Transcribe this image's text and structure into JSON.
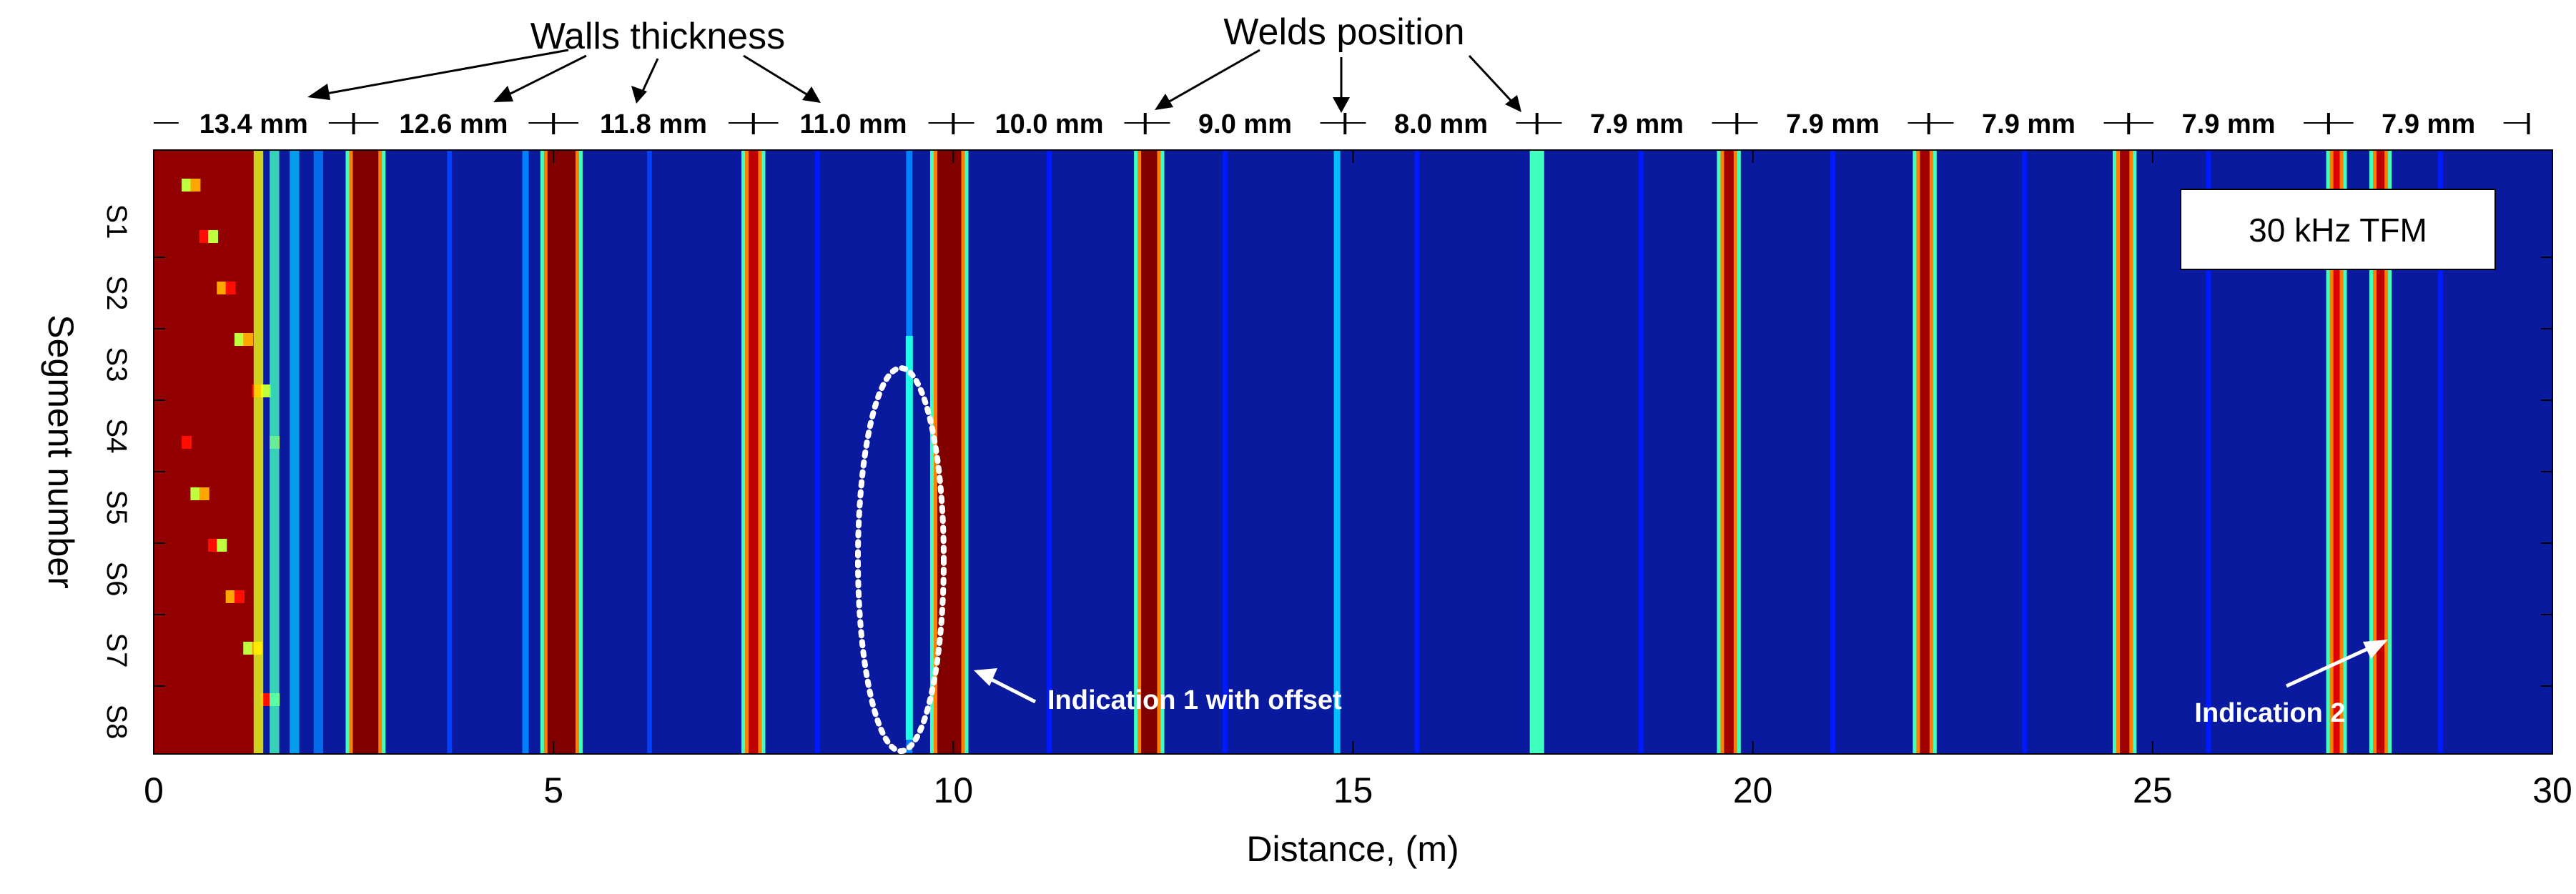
{
  "chart_data": {
    "type": "heatmap",
    "title": "30 kHz TFM",
    "xlabel": "Distance, (m)",
    "ylabel": "Segment number",
    "xlim": [
      0,
      30
    ],
    "xticks": [
      "0",
      "5",
      "10",
      "15",
      "20",
      "25",
      "30"
    ],
    "y_categories": [
      "S1",
      "S2",
      "S3",
      "S4",
      "S5",
      "S6",
      "S7",
      "S8"
    ],
    "colormap": [
      "#00008f",
      "#0000ff",
      "#00ffff",
      "#ffff00",
      "#ff0000",
      "#800000"
    ],
    "background_color": "#0a1a9e",
    "wall_boundaries_m": [
      2.5,
      5.0,
      7.5,
      10.0,
      12.4,
      14.9,
      17.3,
      19.8,
      22.2,
      24.7,
      27.2,
      29.7
    ],
    "wall_thickness": [
      {
        "label": "13.4 mm",
        "start": 0.0,
        "end": 2.5
      },
      {
        "label": "12.6 mm",
        "start": 2.5,
        "end": 5.0
      },
      {
        "label": "11.8 mm",
        "start": 5.0,
        "end": 7.5
      },
      {
        "label": "11.0 mm",
        "start": 7.5,
        "end": 10.0
      },
      {
        "label": "10.0 mm",
        "start": 10.0,
        "end": 12.4
      },
      {
        "label": "9.0 mm",
        "start": 12.4,
        "end": 14.9
      },
      {
        "label": "8.0 mm",
        "start": 14.9,
        "end": 17.3
      },
      {
        "label": "7.9 mm",
        "start": 17.3,
        "end": 19.8
      },
      {
        "label": "7.9 mm",
        "start": 19.8,
        "end": 22.2
      },
      {
        "label": "7.9 mm",
        "start": 22.2,
        "end": 24.7
      },
      {
        "label": "7.9 mm",
        "start": 24.7,
        "end": 27.2
      },
      {
        "label": "7.9 mm",
        "start": 27.2,
        "end": 29.7
      }
    ],
    "strong_reflections": [
      {
        "x": 2.65,
        "width": 0.32,
        "level": 1.0
      },
      {
        "x": 5.1,
        "width": 0.35,
        "level": 1.0
      },
      {
        "x": 7.5,
        "width": 0.12,
        "level": 0.9
      },
      {
        "x": 9.95,
        "width": 0.3,
        "level": 1.0
      },
      {
        "x": 12.45,
        "width": 0.2,
        "level": 1.0
      },
      {
        "x": 19.7,
        "width": 0.12,
        "level": 0.95
      },
      {
        "x": 22.15,
        "width": 0.12,
        "level": 0.95
      },
      {
        "x": 24.65,
        "width": 0.12,
        "level": 0.95
      },
      {
        "x": 27.3,
        "width": 0.08,
        "level": 0.85
      },
      {
        "x": 27.85,
        "width": 0.1,
        "level": 0.9
      }
    ],
    "weak_reflections": [
      {
        "x": 17.3,
        "width": 0.18,
        "level": 0.45
      },
      {
        "x": 14.8,
        "width": 0.08,
        "level": 0.35
      },
      {
        "x": 9.45,
        "width": 0.08,
        "level": 0.3
      },
      {
        "x": 4.65,
        "width": 0.08,
        "level": 0.3
      },
      {
        "x": 3.7,
        "width": 0.06,
        "level": 0.25
      },
      {
        "x": 6.2,
        "width": 0.06,
        "level": 0.25
      },
      {
        "x": 8.3,
        "width": 0.06,
        "level": 0.22
      },
      {
        "x": 11.2,
        "width": 0.06,
        "level": 0.22
      },
      {
        "x": 13.4,
        "width": 0.06,
        "level": 0.22
      },
      {
        "x": 15.8,
        "width": 0.06,
        "level": 0.22
      },
      {
        "x": 18.6,
        "width": 0.06,
        "level": 0.22
      },
      {
        "x": 21.0,
        "width": 0.06,
        "level": 0.22
      },
      {
        "x": 23.4,
        "width": 0.06,
        "level": 0.22
      },
      {
        "x": 25.7,
        "width": 0.06,
        "level": 0.22
      },
      {
        "x": 28.6,
        "width": 0.06,
        "level": 0.22
      }
    ],
    "annotations": {
      "walls_thickness": "Walls thickness",
      "welds_position": "Welds position",
      "indication_1": "Indication 1 with offset",
      "indication_2": "Indication 2"
    },
    "indication_1": {
      "x": 9.45,
      "segment_from": "S3",
      "segment_to": "S8"
    },
    "indication_2": {
      "x": 27.85,
      "segment": "S7"
    }
  }
}
